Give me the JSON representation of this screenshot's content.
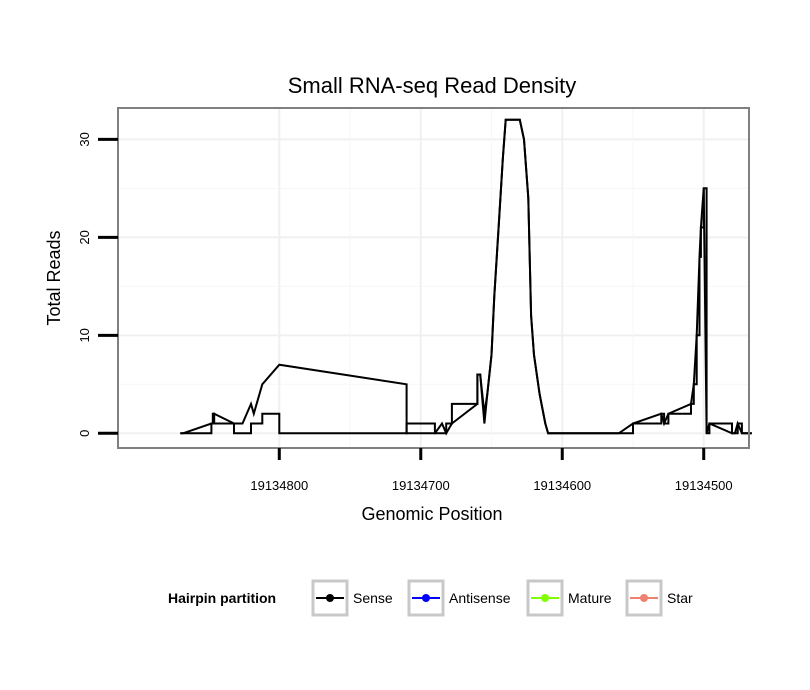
{
  "chart_data": {
    "type": "line",
    "title": "Small RNA-seq Read Density",
    "xlabel": "Genomic Position",
    "ylabel": "Total Reads",
    "x_reversed": true,
    "xlim": [
      19134468,
      19134914
    ],
    "ylim": [
      -1.5,
      33.2
    ],
    "x_ticks": [
      19134800,
      19134700,
      19134600,
      19134500
    ],
    "x_tick_labels": [
      "19134800",
      "19134700",
      "19134600",
      "19134500"
    ],
    "y_ticks": [
      0,
      10,
      20,
      30
    ],
    "y_tick_labels": [
      "0",
      "10",
      "20",
      "30"
    ],
    "grid": true,
    "legend": {
      "title": "Hairpin partition",
      "position": "bottom",
      "entries": [
        {
          "label": "Sense",
          "color": "#000000"
        },
        {
          "label": "Antisense",
          "color": "#0000ff"
        },
        {
          "label": "Mature",
          "color": "#7fff00"
        },
        {
          "label": "Star",
          "color": "#f08070"
        }
      ]
    },
    "series": [
      {
        "name": "Sense",
        "color": "#000000",
        "style": "line",
        "x": [
          19134870,
          19134868,
          19134848,
          19134848,
          19134847,
          19134847,
          19134846,
          19134846,
          19134832,
          19134832,
          19134826,
          19134826,
          19134820,
          19134820,
          19134818,
          19134818,
          19134812,
          19134812,
          19134800,
          19134800,
          19134710,
          19134710,
          19134690,
          19134690,
          19134685,
          19134685,
          19134682,
          19134682,
          19134678,
          19134678,
          19134660,
          19134660,
          19134658,
          19134655,
          19134653,
          19134650,
          19134648,
          19134645,
          19134642,
          19134640,
          19134637,
          19134634,
          19134630,
          19134627,
          19134624,
          19134622,
          19134620,
          19134616,
          19134612,
          19134610,
          19134606,
          19134600,
          19134580,
          19134560,
          19134550,
          19134550,
          19134530,
          19134530,
          19134528,
          19134528,
          19134525,
          19134525,
          19134509,
          19134509,
          19134507,
          19134507,
          19134505,
          19134505,
          19134503,
          19134503,
          19134502,
          19134502,
          19134500,
          19134500,
          19134498,
          19134498,
          19134496,
          19134496,
          19134480,
          19134480,
          19134478,
          19134478,
          19134476,
          19134476,
          19134473,
          19134473,
          19134466
        ],
        "y": [
          0,
          0,
          0,
          1,
          1,
          2,
          2,
          1,
          1,
          0,
          0,
          0,
          0,
          1,
          1,
          1,
          1,
          2,
          2,
          0,
          0,
          1,
          1,
          0,
          0,
          0,
          0,
          1,
          1,
          3,
          3,
          6,
          6,
          2,
          4,
          8,
          14,
          21,
          28,
          32,
          32,
          32,
          32,
          30,
          24,
          12,
          8,
          4,
          1,
          0,
          0,
          0,
          0,
          0,
          0,
          1,
          1,
          2,
          2,
          1,
          1,
          2,
          2,
          3,
          3,
          5,
          5,
          10,
          10,
          18,
          18,
          21,
          21,
          25,
          25,
          0,
          0,
          1,
          1,
          0,
          0,
          0,
          0,
          1,
          1,
          0,
          0
        ]
      },
      {
        "name": "Sense",
        "color": "#000000",
        "style": "line",
        "x": [
          19134870,
          19134868,
          19134848,
          19134848,
          19134847,
          19134847,
          19134846,
          19134846,
          19134832,
          19134832,
          19134826,
          19134826,
          19134820,
          19134820,
          19134818,
          19134818,
          19134812,
          19134812,
          19134800,
          19134800,
          19134710,
          19134710,
          19134690,
          19134690,
          19134685,
          19134685,
          19134682,
          19134682,
          19134678,
          19134678,
          19134660,
          19134660,
          19134658,
          19134655,
          19134653,
          19134650,
          19134648,
          19134645,
          19134642,
          19134640,
          19134637,
          19134634,
          19134630,
          19134627,
          19134624,
          19134622,
          19134620,
          19134616,
          19134612,
          19134610,
          19134606,
          19134600,
          19134580,
          19134560,
          19134550,
          19134550,
          19134530,
          19134530,
          19134528,
          19134528,
          19134525,
          19134525,
          19134509,
          19134509,
          19134507,
          19134507,
          19134505,
          19134505,
          19134503,
          19134503,
          19134502,
          19134502,
          19134500,
          19134500,
          19134498,
          19134498,
          19134496,
          19134496,
          19134480,
          19134480,
          19134478,
          19134478,
          19134476,
          19134476,
          19134473,
          19134473,
          19134466
        ],
        "y": [
          0,
          0,
          1,
          1,
          1,
          1,
          2,
          2,
          1,
          1,
          1,
          1,
          3,
          3,
          2,
          2,
          5,
          5,
          7,
          7,
          5,
          0,
          0,
          0,
          1,
          1,
          0,
          0,
          1,
          1,
          3,
          6,
          6,
          1,
          4,
          8,
          14,
          21,
          28,
          32,
          32,
          32,
          32,
          30,
          24,
          12,
          8,
          4,
          1,
          0,
          0,
          0,
          0,
          0,
          1,
          1,
          2,
          2,
          1,
          1,
          2,
          2,
          3,
          3,
          5,
          5,
          10,
          10,
          18,
          18,
          21,
          21,
          25,
          25,
          0,
          0,
          1,
          1,
          0,
          0,
          0,
          0,
          1,
          1,
          0,
          0,
          0
        ]
      }
    ]
  }
}
